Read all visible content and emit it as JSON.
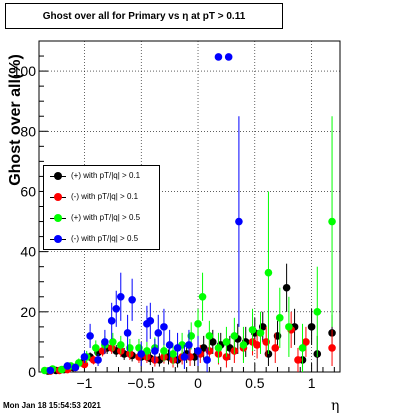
{
  "title": "Ghost over all for Primary vs  η at pT > 0.11",
  "ylabel": "Ghost over all(%)",
  "xlabel": "η",
  "timestamp": "Mon Jan 18 15:54:53 2021",
  "legend": [
    {
      "label": "(+) with pT/|q| > 0.1",
      "color": "#000000"
    },
    {
      "label": "(-) with pT/|q| > 0.1",
      "color": "#ff0000"
    },
    {
      "label": "(+) with pT/|q| > 0.5",
      "color": "#00ff00"
    },
    {
      "label": "(-) with pT/|q| > 0.5",
      "color": "#0000ff"
    }
  ],
  "chart_data": {
    "type": "scatter",
    "title": "Ghost over all for Primary vs  η at pT > 0.11",
    "xlabel": "η",
    "ylabel": "Ghost over all(%)",
    "xlim": [
      -1.4,
      1.25
    ],
    "ylim": [
      0,
      110
    ],
    "x_ticks": [
      -1,
      -0.5,
      0,
      0.5,
      1
    ],
    "x_tick_labels": [
      "−1",
      "−0.5",
      "0",
      "0.5",
      "1"
    ],
    "y_ticks": [
      0,
      20,
      40,
      60,
      80,
      100
    ],
    "y_tick_labels": [
      "0",
      "20",
      "40",
      "60",
      "80",
      "100"
    ],
    "grid": true,
    "legend_position": "middle-left",
    "series": [
      {
        "name": "(+) with pT/|q| > 0.1",
        "color": "#000000",
        "points": [
          [
            -1.32,
            0.3,
            0.3
          ],
          [
            -1.25,
            0.5,
            0.4
          ],
          [
            -1.18,
            0.8,
            0.5
          ],
          [
            -1.1,
            1.5,
            0.8
          ],
          [
            -1.02,
            3.0,
            1.2
          ],
          [
            -0.95,
            5.0,
            1.5
          ],
          [
            -0.88,
            6.5,
            1.8
          ],
          [
            -0.8,
            8.0,
            2.0
          ],
          [
            -0.72,
            7.0,
            2.0
          ],
          [
            -0.65,
            6.0,
            2.0
          ],
          [
            -0.58,
            5.5,
            2.0
          ],
          [
            -0.5,
            5.0,
            2.0
          ],
          [
            -0.42,
            4.5,
            2.2
          ],
          [
            -0.34,
            4.0,
            2.2
          ],
          [
            -0.26,
            5.0,
            2.5
          ],
          [
            -0.18,
            4.0,
            2.5
          ],
          [
            -0.1,
            6.0,
            3.0
          ],
          [
            -0.03,
            5.0,
            3.0
          ],
          [
            0.05,
            8.0,
            4.0
          ],
          [
            0.13,
            10.0,
            4.0
          ],
          [
            0.2,
            9.0,
            4.0
          ],
          [
            0.28,
            8.0,
            4.0
          ],
          [
            0.35,
            11.0,
            5.0
          ],
          [
            0.42,
            10.0,
            5.0
          ],
          [
            0.5,
            13.0,
            5.0
          ],
          [
            0.57,
            15.0,
            5.0
          ],
          [
            0.62,
            6.0,
            4.0
          ],
          [
            0.7,
            12.0,
            5.0
          ],
          [
            0.78,
            28.0,
            8.0
          ],
          [
            0.85,
            15.0,
            6.0
          ],
          [
            0.92,
            4.0,
            4.0
          ],
          [
            1.0,
            15.0,
            6.0
          ],
          [
            1.05,
            6.0,
            6.0
          ],
          [
            1.18,
            13.0,
            6.0
          ]
        ]
      },
      {
        "name": "(-) with pT/|q| > 0.1",
        "color": "#ff0000",
        "points": [
          [
            -1.3,
            0.3,
            0.3
          ],
          [
            -1.22,
            0.5,
            0.4
          ],
          [
            -1.15,
            0.8,
            0.5
          ],
          [
            -1.08,
            1.5,
            0.8
          ],
          [
            -1.0,
            2.5,
            1.0
          ],
          [
            -0.92,
            4.0,
            1.5
          ],
          [
            -0.84,
            7.0,
            1.8
          ],
          [
            -0.76,
            8.0,
            2.0
          ],
          [
            -0.68,
            7.0,
            2.0
          ],
          [
            -0.6,
            6.0,
            2.0
          ],
          [
            -0.52,
            5.0,
            2.0
          ],
          [
            -0.45,
            5.0,
            2.0
          ],
          [
            -0.38,
            4.0,
            2.2
          ],
          [
            -0.3,
            5.0,
            2.2
          ],
          [
            -0.22,
            4.0,
            2.5
          ],
          [
            -0.14,
            5.0,
            2.5
          ],
          [
            -0.07,
            5.0,
            3.0
          ],
          [
            0.02,
            6.0,
            3.0
          ],
          [
            0.1,
            7.0,
            3.5
          ],
          [
            0.18,
            6.0,
            3.5
          ],
          [
            0.25,
            5.0,
            3.5
          ],
          [
            0.32,
            7.0,
            4.0
          ],
          [
            0.4,
            8.0,
            4.0
          ],
          [
            0.48,
            10.0,
            4.5
          ],
          [
            0.52,
            9.0,
            4.5
          ],
          [
            0.6,
            10.0,
            5.0
          ],
          [
            0.68,
            8.0,
            5.0
          ],
          [
            0.82,
            14.0,
            6.0
          ],
          [
            0.88,
            4.0,
            4.0
          ],
          [
            0.95,
            10.0,
            5.0
          ],
          [
            1.18,
            8.0,
            6.0
          ]
        ]
      },
      {
        "name": "(+) with pT/|q| > 0.5",
        "color": "#00ff00",
        "points": [
          [
            -1.35,
            0.5,
            0.5
          ],
          [
            -1.28,
            1.0,
            0.5
          ],
          [
            -1.2,
            0.8,
            0.5
          ],
          [
            -1.12,
            2.0,
            1.0
          ],
          [
            -1.05,
            3.0,
            1.5
          ],
          [
            -0.98,
            5.0,
            2.0
          ],
          [
            -0.9,
            8.0,
            2.5
          ],
          [
            -0.82,
            9.0,
            3.0
          ],
          [
            -0.75,
            10.0,
            3.0
          ],
          [
            -0.68,
            9.0,
            3.0
          ],
          [
            -0.6,
            8.0,
            3.0
          ],
          [
            -0.52,
            8.0,
            3.0
          ],
          [
            -0.45,
            7.0,
            3.0
          ],
          [
            -0.38,
            8.0,
            3.5
          ],
          [
            -0.3,
            7.0,
            3.5
          ],
          [
            -0.22,
            6.0,
            3.5
          ],
          [
            -0.14,
            9.0,
            4.0
          ],
          [
            -0.06,
            12.0,
            4.5
          ],
          [
            0.0,
            16.0,
            5.0
          ],
          [
            0.04,
            25.0,
            8.0
          ],
          [
            0.1,
            12.0,
            5.0
          ],
          [
            0.18,
            8.0,
            5.0
          ],
          [
            0.25,
            10.0,
            5.0
          ],
          [
            0.32,
            12.0,
            6.0
          ],
          [
            0.4,
            9.0,
            6.0
          ],
          [
            0.48,
            14.0,
            7.0
          ],
          [
            0.55,
            13.0,
            7.0
          ],
          [
            0.62,
            33.0,
            27.0
          ],
          [
            0.72,
            18.0,
            10.0
          ],
          [
            0.8,
            15.0,
            10.0
          ],
          [
            0.92,
            8.0,
            8.0
          ],
          [
            1.05,
            20.0,
            15.0
          ],
          [
            1.18,
            50.0,
            35.0
          ]
        ]
      },
      {
        "name": "(-) with pT/|q| > 0.5",
        "color": "#0000ff",
        "points": [
          [
            -1.3,
            0.5,
            0.5
          ],
          [
            -1.15,
            2.0,
            1.0
          ],
          [
            -1.08,
            1.5,
            1.0
          ],
          [
            -1.0,
            5.0,
            2.0
          ],
          [
            -0.95,
            12.0,
            4.0
          ],
          [
            -0.88,
            4.0,
            2.0
          ],
          [
            -0.82,
            10.0,
            4.0
          ],
          [
            -0.76,
            17.0,
            6.0
          ],
          [
            -0.72,
            21.0,
            6.0
          ],
          [
            -0.68,
            25.0,
            8.0
          ],
          [
            -0.62,
            13.0,
            6.0
          ],
          [
            -0.58,
            24.0,
            7.0
          ],
          [
            -0.5,
            6.0,
            4.0
          ],
          [
            -0.45,
            16.0,
            6.0
          ],
          [
            -0.42,
            17.0,
            6.0
          ],
          [
            -0.38,
            7.0,
            4.0
          ],
          [
            -0.35,
            13.0,
            6.0
          ],
          [
            -0.3,
            15.0,
            6.0
          ],
          [
            -0.25,
            9.0,
            5.0
          ],
          [
            -0.18,
            8.0,
            5.0
          ],
          [
            -0.12,
            5.0,
            4.0
          ],
          [
            -0.08,
            9.0,
            5.0
          ],
          [
            0.0,
            7.0,
            5.0
          ],
          [
            0.08,
            4.0,
            4.0
          ],
          [
            0.18,
            104.7,
            0.0
          ],
          [
            0.27,
            104.7,
            0.0
          ],
          [
            0.36,
            50.0,
            35.0
          ]
        ]
      }
    ]
  }
}
